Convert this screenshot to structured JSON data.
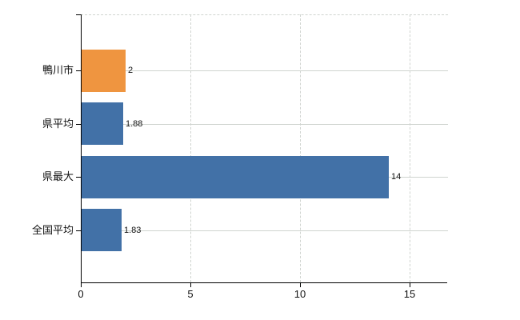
{
  "chart_data": {
    "type": "bar",
    "orientation": "horizontal",
    "title": "",
    "xlabel": "",
    "ylabel": "",
    "categories": [
      "鴨川市",
      "県平均",
      "県最大",
      "全国平均"
    ],
    "values": [
      2,
      1.88,
      14,
      1.83
    ],
    "value_labels": [
      "2",
      "1.88",
      "14",
      "1.83"
    ],
    "bar_colors": [
      "#ef9540",
      "#4271a7",
      "#4271a7",
      "#4271a7"
    ],
    "highlight_color": "#ef9540",
    "series_color": "#4271a7",
    "xlim": [
      0,
      16.8
    ],
    "x_ticks": [
      0,
      5,
      10,
      15
    ],
    "x_tick_labels": [
      "0",
      "5",
      "10",
      "15"
    ],
    "grid": {
      "vertical_style": "dashed",
      "horizontal_style": "solid",
      "color": "#cfd3cf",
      "top_border": "dashed"
    },
    "legend": "none",
    "axis_color": "#000000",
    "text_color": "#111111",
    "background": "#ffffff"
  }
}
